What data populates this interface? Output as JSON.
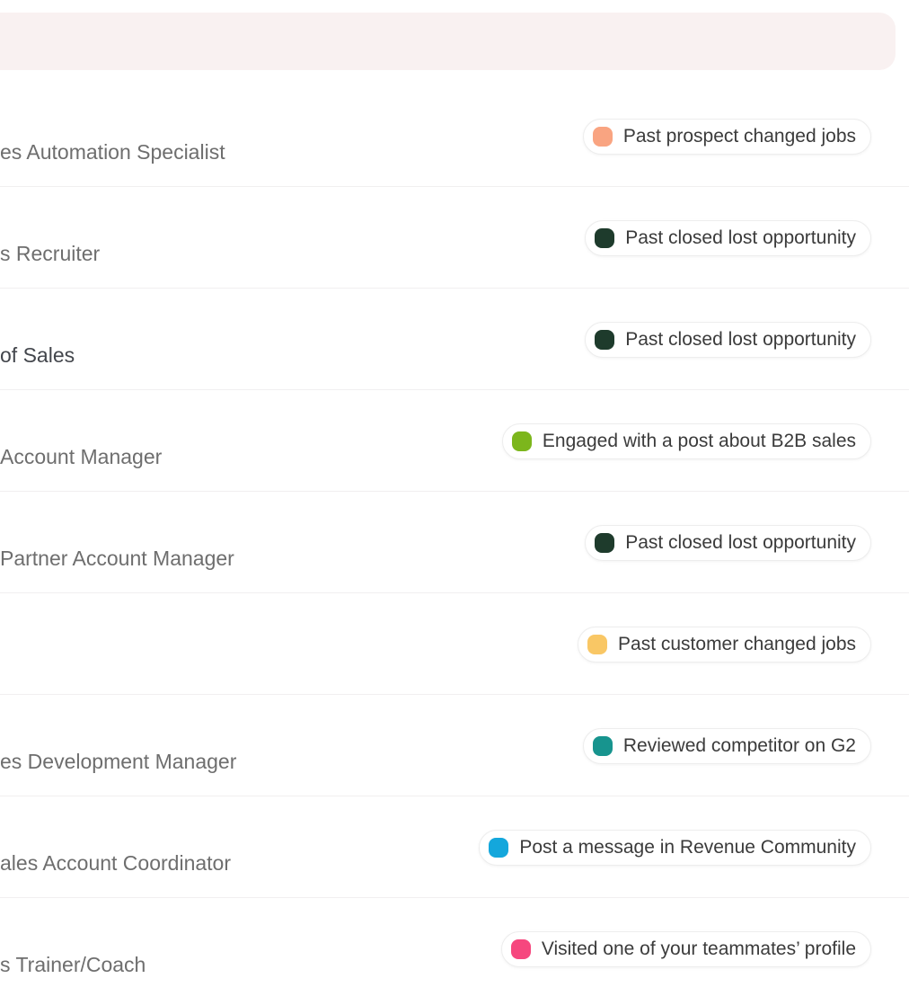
{
  "banner": {
    "bg_color": "#f9f1f1"
  },
  "list": {
    "rows": [
      {
        "title": "es Automation Specialist",
        "title_color": "#6e6e6e",
        "badge": {
          "label": "Past prospect changed jobs",
          "dot_color": "#f9a481"
        }
      },
      {
        "title": "s Recruiter",
        "title_color": "#6e6e6e",
        "badge": {
          "label": "Past closed lost opportunity",
          "dot_color": "#1e3b2c"
        }
      },
      {
        "title": "of Sales",
        "title_color": "#43464c",
        "badge": {
          "label": "Past closed lost opportunity",
          "dot_color": "#1e3b2c"
        }
      },
      {
        "title": "Account Manager",
        "title_color": "#6e6e6e",
        "badge": {
          "label": "Engaged with a post about B2B sales",
          "dot_color": "#7cb61c"
        }
      },
      {
        "title": "Partner Account Manager",
        "title_color": "#6e6e6e",
        "badge": {
          "label": "Past closed lost opportunity",
          "dot_color": "#1e3b2c"
        }
      },
      {
        "title": "",
        "title_color": "#6e6e6e",
        "badge": {
          "label": "Past customer changed jobs",
          "dot_color": "#f9c765"
        }
      },
      {
        "title": "es Development Manager",
        "title_color": "#6e6e6e",
        "badge": {
          "label": "Reviewed competitor on G2",
          "dot_color": "#17948e"
        }
      },
      {
        "title": "ales Account Coordinator",
        "title_color": "#6e6e6e",
        "badge": {
          "label": "Post a message in Revenue Community",
          "dot_color": "#14a7dc"
        }
      },
      {
        "title": "s Trainer/Coach",
        "title_color": "#6e6e6e",
        "badge": {
          "label": "Visited one of your teammates’ profile",
          "dot_color": "#f6477e"
        }
      }
    ]
  }
}
